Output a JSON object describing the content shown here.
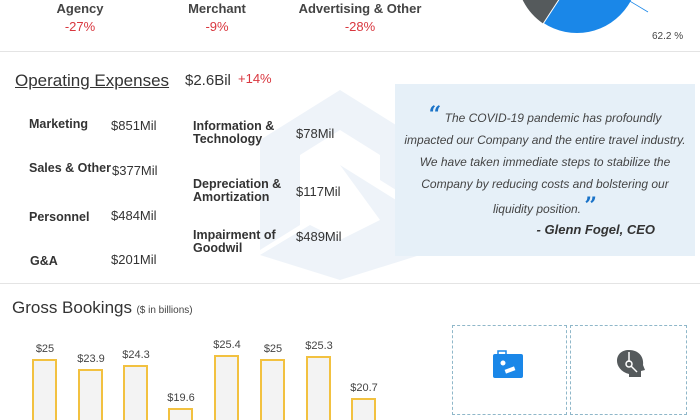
{
  "revenue_breakdown": {
    "items": [
      {
        "label": "Agency",
        "change": "-27%"
      },
      {
        "label": "Merchant",
        "change": "-9%"
      },
      {
        "label": "Advertising & Other",
        "change": "-28%"
      }
    ],
    "pie_label": "62.2 %",
    "colors": {
      "blue": "#1a87e8",
      "gray": "#555a5c",
      "negative": "#d9373f"
    }
  },
  "operating_expenses": {
    "title": "Operating Expenses",
    "total": "$2.6Bil",
    "change": "+14%",
    "left": [
      {
        "label": "Marketing",
        "value": "$851Mil"
      },
      {
        "label": "Sales & Other",
        "value": "$377Mil"
      },
      {
        "label": "Personnel",
        "value": "$484Mil"
      },
      {
        "label": "G&A",
        "value": "$201Mil"
      }
    ],
    "right": [
      {
        "label": "Information & Technology",
        "value": "$78Mil"
      },
      {
        "label": "Depreciation & Amortization",
        "value": "$117Mil"
      },
      {
        "label": "Impairment of Goodwil",
        "value": "$489Mil"
      }
    ]
  },
  "quote": {
    "open": "“",
    "close": "”",
    "text": "The COVID-19 pandemic has profoundly impacted our Company and the entire travel industry. We have taken immediate steps to stabilize the Company by reducing costs and bolstering our liquidity position.",
    "author": "- Glenn Fogel, CEO"
  },
  "gross_bookings": {
    "title": "Gross Bookings",
    "subtitle": "($ in billions)",
    "cards": [
      {
        "icon": "briefcase-icon"
      },
      {
        "icon": "headset-icon"
      }
    ]
  },
  "chart_data": {
    "type": "bar",
    "values": [
      25,
      23.9,
      24.3,
      19.6,
      25.4,
      25,
      25.3,
      20.7
    ],
    "labels": [
      "$25",
      "$23.9",
      "$24.3",
      "$19.6",
      "$25.4",
      "$25",
      "$25.3",
      "$20.7"
    ],
    "colors": {
      "border": "#f2c140",
      "fill": "#f3f3f3"
    }
  }
}
